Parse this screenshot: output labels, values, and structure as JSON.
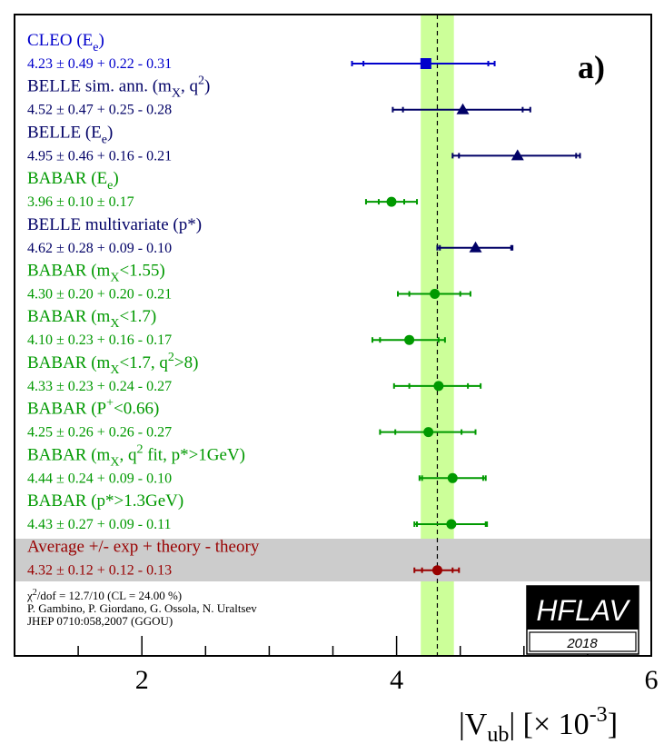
{
  "chart_data": {
    "type": "forest",
    "panel_label": "a)",
    "xlim": [
      1,
      6
    ],
    "x_ticks": [
      2,
      4,
      6
    ],
    "x_tick_labels": [
      "2",
      "4",
      "6"
    ],
    "xlabel": {
      "main": "|V",
      "sub": "ub",
      "bracket": "|  [× 10",
      "exp": "-3",
      "close": "]"
    },
    "band": {
      "low": 4.19,
      "high": 4.45,
      "color": "#ccff99"
    },
    "average_line": 4.32,
    "colors": {
      "blue": "#0000cc",
      "navy": "#000066",
      "green": "#009900",
      "red": "#990000",
      "average_bg": "#cccccc"
    },
    "measurements": [
      {
        "label": "CLEO (E",
        "label_sub": "e",
        "label_rest": ")",
        "value_text": "4.23 ± 0.49 + 0.22 - 0.31",
        "value": 4.23,
        "stat_err": 0.49,
        "tot_hi": 0.54,
        "tot_lo": 0.58,
        "color": "#0000cc",
        "marker": "square"
      },
      {
        "label": "BELLE sim. ann. (m",
        "label_sub": "X",
        "label_mid": ", q",
        "label_sup": "2",
        "label_rest": ")",
        "value_text": "4.52 ± 0.47 + 0.25 - 0.28",
        "value": 4.52,
        "stat_err": 0.47,
        "tot_hi": 0.53,
        "tot_lo": 0.55,
        "color": "#000066",
        "marker": "triangle"
      },
      {
        "label": "BELLE (E",
        "label_sub": "e",
        "label_rest": ")",
        "value_text": "4.95 ± 0.46 + 0.16 - 0.21",
        "value": 4.95,
        "stat_err": 0.46,
        "tot_hi": 0.49,
        "tot_lo": 0.51,
        "color": "#000066",
        "marker": "triangle"
      },
      {
        "label": "BABAR (E",
        "label_sub": "e",
        "label_rest": ")",
        "value_text": "3.96 ± 0.10 ± 0.17",
        "value": 3.96,
        "stat_err": 0.1,
        "tot_hi": 0.2,
        "tot_lo": 0.2,
        "color": "#009900",
        "marker": "circle"
      },
      {
        "label": "BELLE multivariate (p*)",
        "value_text": "4.62 ± 0.28 + 0.09 - 0.10",
        "value": 4.62,
        "stat_err": 0.28,
        "tot_hi": 0.29,
        "tot_lo": 0.3,
        "color": "#000066",
        "marker": "triangle"
      },
      {
        "label": "BABAR (m",
        "label_sub": "X",
        "label_rest": "<1.55)",
        "value_text": "4.30 ± 0.20 + 0.20 - 0.21",
        "value": 4.3,
        "stat_err": 0.2,
        "tot_hi": 0.28,
        "tot_lo": 0.29,
        "color": "#009900",
        "marker": "circle"
      },
      {
        "label": "BABAR (m",
        "label_sub": "X",
        "label_rest": "<1.7)",
        "value_text": "4.10 ± 0.23 + 0.16 - 0.17",
        "value": 4.1,
        "stat_err": 0.23,
        "tot_hi": 0.28,
        "tot_lo": 0.29,
        "color": "#009900",
        "marker": "circle"
      },
      {
        "label": "BABAR (m",
        "label_sub": "X",
        "label_mid": "<1.7, q",
        "label_sup": "2",
        "label_rest": ">8)",
        "value_text": "4.33 ± 0.23 + 0.24 - 0.27",
        "value": 4.33,
        "stat_err": 0.23,
        "tot_hi": 0.33,
        "tot_lo": 0.35,
        "color": "#009900",
        "marker": "circle"
      },
      {
        "label": "BABAR (P",
        "label_sup": "+",
        "label_rest": "<0.66)",
        "value_text": "4.25 ± 0.26 + 0.26 - 0.27",
        "value": 4.25,
        "stat_err": 0.26,
        "tot_hi": 0.37,
        "tot_lo": 0.38,
        "color": "#009900",
        "marker": "circle"
      },
      {
        "label": "BABAR (m",
        "label_sub": "X",
        "label_mid": ", q",
        "label_sup": "2",
        "label_rest": " fit, p*>1GeV)",
        "value_text": "4.44 ± 0.24 + 0.09 - 0.10",
        "value": 4.44,
        "stat_err": 0.24,
        "tot_hi": 0.26,
        "tot_lo": 0.26,
        "color": "#009900",
        "marker": "circle"
      },
      {
        "label": "BABAR (p*>1.3GeV)",
        "value_text": "4.43 ± 0.27 + 0.09 - 0.11",
        "value": 4.43,
        "stat_err": 0.27,
        "tot_hi": 0.28,
        "tot_lo": 0.29,
        "color": "#009900",
        "marker": "circle"
      }
    ],
    "average": {
      "label": "Average +/- exp + theory - theory",
      "value_text": "4.32 ± 0.12 + 0.12 - 0.13",
      "value": 4.32,
      "stat_err": 0.12,
      "tot_hi": 0.17,
      "tot_lo": 0.18,
      "color": "#990000",
      "marker": "circle"
    },
    "footnote": {
      "chi2_prefix": "χ",
      "chi2_sup": "2",
      "chi2_rest": "/dof = 12.7/10 (CL = 24.00 %)",
      "authors": "P. Gambino, P. Giordano, G. Ossola, N. Uraltsev",
      "ref": "JHEP 0710:058,2007 (GGOU)"
    },
    "logo": {
      "text": "HFLAV",
      "year": "2018"
    }
  }
}
